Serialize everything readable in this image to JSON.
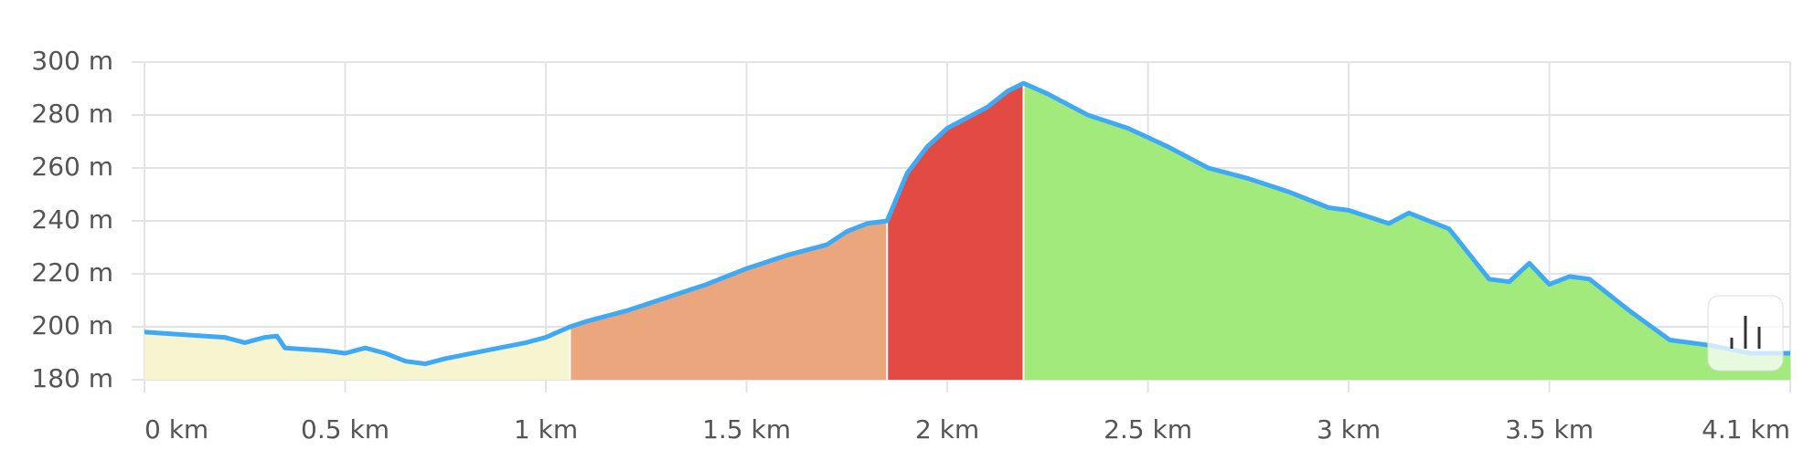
{
  "chart_data": {
    "type": "area",
    "x": [
      0,
      0.1,
      0.2,
      0.25,
      0.3,
      0.33,
      0.35,
      0.45,
      0.5,
      0.55,
      0.6,
      0.65,
      0.7,
      0.75,
      0.85,
      0.95,
      1.0,
      1.06,
      1.1,
      1.2,
      1.3,
      1.4,
      1.5,
      1.6,
      1.7,
      1.75,
      1.8,
      1.85,
      1.9,
      1.95,
      2.0,
      2.05,
      2.1,
      2.15,
      2.19,
      2.25,
      2.35,
      2.45,
      2.55,
      2.65,
      2.75,
      2.85,
      2.95,
      3.0,
      3.1,
      3.15,
      3.25,
      3.35,
      3.4,
      3.45,
      3.5,
      3.55,
      3.6,
      3.7,
      3.8,
      3.9,
      4.0,
      4.1
    ],
    "values": [
      198,
      197,
      196,
      194,
      196,
      196.5,
      192,
      191,
      190,
      192,
      190,
      187,
      186,
      188,
      191,
      194,
      196,
      200,
      202,
      206,
      211,
      216,
      222,
      227,
      231,
      236,
      239,
      240,
      258,
      268,
      275,
      279,
      283,
      289,
      292,
      288,
      280,
      275,
      268,
      260,
      256,
      251,
      245,
      244,
      239,
      243,
      237,
      218,
      217,
      224,
      216,
      219,
      218,
      206,
      195,
      193,
      190,
      190
    ],
    "color": "#3fa9f5",
    "zones": [
      {
        "xlim": [
          0,
          1.06
        ],
        "color": "#f7f4d0"
      },
      {
        "xlim": [
          1.06,
          1.85
        ],
        "color": "#eba67e"
      },
      {
        "xlim": [
          1.85,
          2.19
        ],
        "color": "#e24a44"
      },
      {
        "xlim": [
          2.19,
          4.1
        ],
        "color": "#a2ea7c"
      }
    ],
    "xlim": [
      0,
      4.1
    ],
    "ylim": [
      180,
      300
    ],
    "xticks": [
      {
        "value": 0,
        "label": "0 km"
      },
      {
        "value": 0.5,
        "label": "0.5 km"
      },
      {
        "value": 1,
        "label": "1 km"
      },
      {
        "value": 1.5,
        "label": "1.5 km"
      },
      {
        "value": 2,
        "label": "2 km"
      },
      {
        "value": 2.5,
        "label": "2.5 km"
      },
      {
        "value": 3,
        "label": "3 km"
      },
      {
        "value": 3.5,
        "label": "3.5 km"
      },
      {
        "value": 4.1,
        "label": "4.1 km"
      }
    ],
    "yticks": [
      {
        "value": 180,
        "label": "180 m"
      },
      {
        "value": 200,
        "label": "200 m"
      },
      {
        "value": 220,
        "label": "220 m"
      },
      {
        "value": 240,
        "label": "240 m"
      },
      {
        "value": 260,
        "label": "260 m"
      },
      {
        "value": 280,
        "label": "280 m"
      },
      {
        "value": 300,
        "label": "300 m"
      }
    ],
    "grid": true
  }
}
